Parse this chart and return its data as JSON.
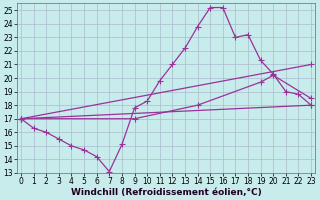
{
  "bg_color": "#c8ecec",
  "grid_color": "#aabbcc",
  "line_color": "#993399",
  "xlabel": "Windchill (Refroidissement éolien,°C)",
  "xlim_min": -0.3,
  "xlim_max": 23.3,
  "ylim_min": 13,
  "ylim_max": 25.5,
  "xticks": [
    0,
    1,
    2,
    3,
    4,
    5,
    6,
    7,
    8,
    9,
    10,
    11,
    12,
    13,
    14,
    15,
    16,
    17,
    18,
    19,
    20,
    21,
    22,
    23
  ],
  "yticks": [
    13,
    14,
    15,
    16,
    17,
    18,
    19,
    20,
    21,
    22,
    23,
    24,
    25
  ],
  "line1_x": [
    0,
    1,
    2,
    3,
    4,
    5,
    6,
    7,
    8,
    9,
    10,
    11,
    12,
    13,
    14,
    15,
    16,
    17,
    18,
    19,
    20,
    21,
    22,
    23
  ],
  "line1_y": [
    17.0,
    16.3,
    16.0,
    15.5,
    15.0,
    14.7,
    14.2,
    13.1,
    15.1,
    17.8,
    18.3,
    19.8,
    21.0,
    22.2,
    23.8,
    25.2,
    25.2,
    23.0,
    23.2,
    21.3,
    20.3,
    19.0,
    18.8,
    18.0
  ],
  "line2_x": [
    0,
    23
  ],
  "line2_y": [
    17.0,
    21.0
  ],
  "line3_x": [
    0,
    9,
    14,
    19,
    20,
    23
  ],
  "line3_y": [
    17.0,
    17.0,
    18.0,
    19.7,
    20.2,
    18.5
  ],
  "line4_x": [
    0,
    23
  ],
  "line4_y": [
    17.0,
    18.0
  ],
  "tick_font_size": 5.5,
  "xlabel_font_size": 6.5
}
